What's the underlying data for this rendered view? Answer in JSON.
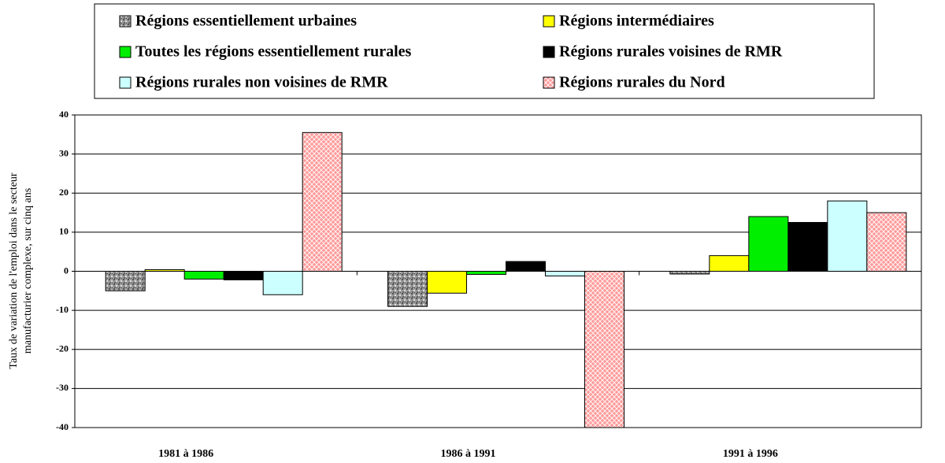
{
  "chart_data": {
    "type": "bar",
    "ylabel": [
      "Taux de variation de l'emploi dans le secteur",
      "manufacturier complexe, sur cinq ans"
    ],
    "categories": [
      "1981 à 1986",
      "1986 à 1991",
      "1991 à 1996"
    ],
    "series": [
      {
        "name": "Régions essentiellement urbaines",
        "color": "#8c8c8c",
        "pattern": "speckle",
        "values": [
          -5,
          -9,
          -0.7
        ]
      },
      {
        "name": "Régions intermédiaires",
        "color": "#ffff00",
        "values": [
          0.4,
          -5.6,
          4
        ]
      },
      {
        "name": "Toutes les régions essentiellement rurales",
        "color": "#00ee00",
        "values": [
          -2,
          -0.8,
          14
        ]
      },
      {
        "name": "Régions rurales voisines de RMR",
        "color": "#000000",
        "values": [
          -2.2,
          2.5,
          12.5
        ]
      },
      {
        "name": "Régions rurales non voisines de RMR",
        "color": "#ccffff",
        "values": [
          -6,
          -1.2,
          18
        ]
      },
      {
        "name": "Régions rurales du Nord",
        "color": "#ff9a9a",
        "pattern": "crosshatch",
        "values": [
          35.5,
          -40,
          15
        ]
      }
    ],
    "ylim": [
      -40,
      40
    ],
    "yticks": [
      -40,
      -30,
      -20,
      -10,
      0,
      10,
      20,
      30,
      40
    ],
    "grid": true,
    "legend": "top"
  }
}
